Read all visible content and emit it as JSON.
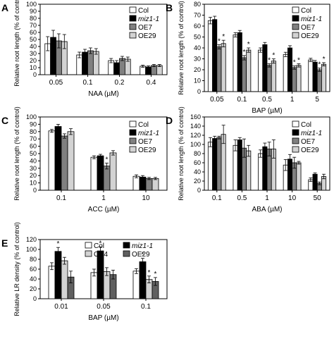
{
  "chart_data": [
    {
      "type": "bar",
      "panel": "A",
      "ylabel": "Relative root length (% of control)",
      "xlabel": "NAA  (µM)",
      "ylim": [
        0,
        100
      ],
      "yticks": [
        0,
        10,
        20,
        30,
        40,
        50,
        60,
        70,
        80,
        90,
        100
      ],
      "categories": [
        "0.05",
        "0.1",
        "0.2",
        "0.4"
      ],
      "legend_position": "top-right",
      "series": [
        {
          "name": "Col",
          "fill": "#ffffff",
          "values": [
            44,
            28,
            20,
            12
          ],
          "errors": [
            10,
            4,
            3,
            1.5
          ],
          "stars": [
            false,
            false,
            false,
            false
          ]
        },
        {
          "name": "miz1-1",
          "italic": true,
          "fill": "#000000",
          "values": [
            53,
            32,
            17,
            11
          ],
          "errors": [
            10,
            4,
            3,
            1.5
          ],
          "stars": [
            false,
            false,
            false,
            false
          ]
        },
        {
          "name": "OE7",
          "fill": "#808080",
          "values": [
            48,
            34,
            23,
            13
          ],
          "errors": [
            10,
            4,
            3,
            1.5
          ],
          "stars": [
            false,
            false,
            false,
            false
          ]
        },
        {
          "name": "OE29",
          "fill": "#d3d3d3",
          "values": [
            47,
            33,
            22,
            13
          ],
          "errors": [
            10,
            4,
            3,
            1.5
          ],
          "stars": [
            false,
            false,
            false,
            false
          ]
        }
      ]
    },
    {
      "type": "bar",
      "panel": "B",
      "ylabel": "Relative root length (% of control)",
      "xlabel": "BAP  (µM)",
      "ylim": [
        0,
        80
      ],
      "yticks": [
        0,
        10,
        20,
        30,
        40,
        50,
        60,
        70,
        80
      ],
      "categories": [
        "0.05",
        "0.1",
        "0.5",
        "1",
        "5"
      ],
      "legend_position": "top-right",
      "series": [
        {
          "name": "Col",
          "fill": "#ffffff",
          "values": [
            65,
            52,
            38,
            34,
            29
          ],
          "errors": [
            3,
            2,
            2,
            2,
            1.5
          ],
          "stars": [
            false,
            false,
            false,
            false,
            false
          ]
        },
        {
          "name": "miz1-1",
          "italic": true,
          "fill": "#000000",
          "values": [
            66,
            54,
            43,
            40,
            27
          ],
          "errors": [
            3,
            2,
            2,
            2,
            1.5
          ],
          "stars": [
            false,
            false,
            false,
            false,
            false
          ]
        },
        {
          "name": "OE7",
          "fill": "#808080",
          "values": [
            41,
            31,
            24,
            22,
            20
          ],
          "errors": [
            2,
            2,
            1.5,
            1.5,
            1.5
          ],
          "stars": [
            true,
            true,
            true,
            true,
            true
          ]
        },
        {
          "name": "OE29",
          "fill": "#d3d3d3",
          "values": [
            44,
            38,
            28,
            24,
            25
          ],
          "errors": [
            3,
            2,
            2,
            1.5,
            1.5
          ],
          "stars": [
            true,
            true,
            true,
            true,
            true
          ]
        }
      ],
      "star_spots": [
        {
          "cat": 0,
          "series": 1
        }
      ]
    },
    {
      "type": "bar",
      "panel": "C",
      "ylabel": "Relative root length (% of control)",
      "xlabel": "ACC  (µM)",
      "ylim": [
        0,
        100
      ],
      "yticks": [
        0,
        10,
        20,
        30,
        40,
        50,
        60,
        70,
        80,
        90,
        100
      ],
      "categories": [
        "0.1",
        "1",
        "10"
      ],
      "legend_position": "top-right",
      "series": [
        {
          "name": "Col",
          "fill": "#ffffff",
          "values": [
            81,
            45,
            19
          ],
          "errors": [
            2,
            2,
            2
          ],
          "stars": [
            false,
            false,
            false
          ]
        },
        {
          "name": "miz1-1",
          "italic": true,
          "fill": "#000000",
          "values": [
            87,
            47,
            18
          ],
          "errors": [
            3,
            2,
            2
          ],
          "stars": [
            false,
            false,
            false
          ]
        },
        {
          "name": "OE7",
          "fill": "#808080",
          "values": [
            74,
            33,
            16
          ],
          "errors": [
            3,
            4,
            1.5
          ],
          "stars": [
            false,
            true,
            false
          ]
        },
        {
          "name": "OE29",
          "fill": "#d3d3d3",
          "values": [
            80,
            51,
            16
          ],
          "errors": [
            4,
            3,
            1.5
          ],
          "stars": [
            false,
            false,
            false
          ]
        }
      ]
    },
    {
      "type": "bar",
      "panel": "D",
      "ylabel": "Relative root length (% of control)",
      "xlabel": "ABA  (µM)",
      "ylim": [
        0,
        160
      ],
      "yticks": [
        0,
        20,
        40,
        60,
        80,
        100,
        120,
        140,
        160
      ],
      "categories": [
        "0.1",
        "0.5",
        "1",
        "10",
        "50"
      ],
      "legend_position": "top-right",
      "series": [
        {
          "name": "Col",
          "fill": "#ffffff",
          "values": [
            105,
            98,
            80,
            55,
            23
          ],
          "errors": [
            10,
            12,
            8,
            12,
            4
          ],
          "stars": [
            false,
            false,
            false,
            false,
            false
          ]
        },
        {
          "name": "miz1-1",
          "italic": true,
          "fill": "#000000",
          "values": [
            113,
            110,
            95,
            68,
            35
          ],
          "errors": [
            5,
            5,
            8,
            10,
            3
          ],
          "stars": [
            false,
            false,
            false,
            false,
            false
          ]
        },
        {
          "name": "OE7",
          "fill": "#808080",
          "values": [
            115,
            92,
            90,
            60,
            15
          ],
          "errors": [
            3,
            20,
            15,
            12,
            3
          ],
          "stars": [
            false,
            false,
            false,
            false,
            false
          ]
        },
        {
          "name": "OE29",
          "fill": "#d3d3d3",
          "values": [
            122,
            86,
            90,
            60,
            30
          ],
          "errors": [
            20,
            12,
            20,
            3,
            5
          ],
          "stars": [
            false,
            false,
            false,
            false,
            false
          ]
        }
      ]
    },
    {
      "type": "bar",
      "panel": "E",
      "ylabel": "Relative LR density (% of control)",
      "xlabel": "BAP  (µM)",
      "ylim": [
        0,
        120
      ],
      "yticks": [
        0,
        20,
        40,
        60,
        80,
        100,
        120
      ],
      "categories": [
        "0.01",
        "0.05",
        "0.1"
      ],
      "legend_position": "top",
      "series": [
        {
          "name": "Col",
          "fill": "#ffffff",
          "values": [
            66,
            53,
            56
          ],
          "errors": [
            7,
            7,
            5
          ],
          "stars": [
            false,
            false,
            false
          ]
        },
        {
          "name": "miz1-1",
          "italic": true,
          "fill": "#000000",
          "values": [
            96,
            97,
            75
          ],
          "errors": [
            8,
            8,
            7
          ],
          "stars": [
            true,
            true,
            true
          ]
        },
        {
          "name": "OE4",
          "fill": "#d3d3d3",
          "values": [
            77,
            55,
            39
          ],
          "errors": [
            7,
            8,
            7
          ],
          "stars": [
            false,
            false,
            true
          ]
        },
        {
          "name": "OE29",
          "fill": "#606060",
          "values": [
            44,
            49,
            35
          ],
          "errors": [
            12,
            9,
            8
          ],
          "stars": [
            false,
            false,
            true
          ]
        }
      ]
    }
  ]
}
